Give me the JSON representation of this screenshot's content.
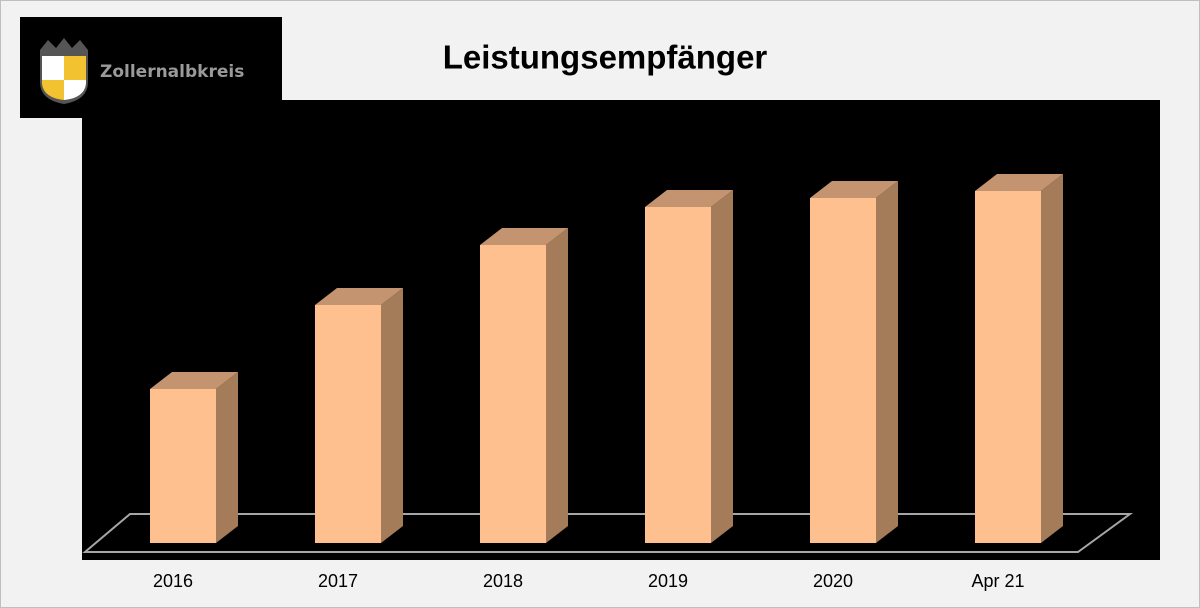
{
  "chart_data": {
    "type": "bar3d",
    "title": "Leistungsempfänger",
    "annotations": [
      "Zollernalbkreis"
    ],
    "categories": [
      "2016",
      "2017",
      "2018",
      "2019",
      "2020",
      "Apr 21"
    ],
    "values": [
      154,
      238,
      298,
      336,
      345,
      352
    ],
    "ylim": [
      0,
      400
    ],
    "colors": {
      "front": "#fdc08e",
      "side": "#a57c5a",
      "top": "#c49470"
    }
  }
}
